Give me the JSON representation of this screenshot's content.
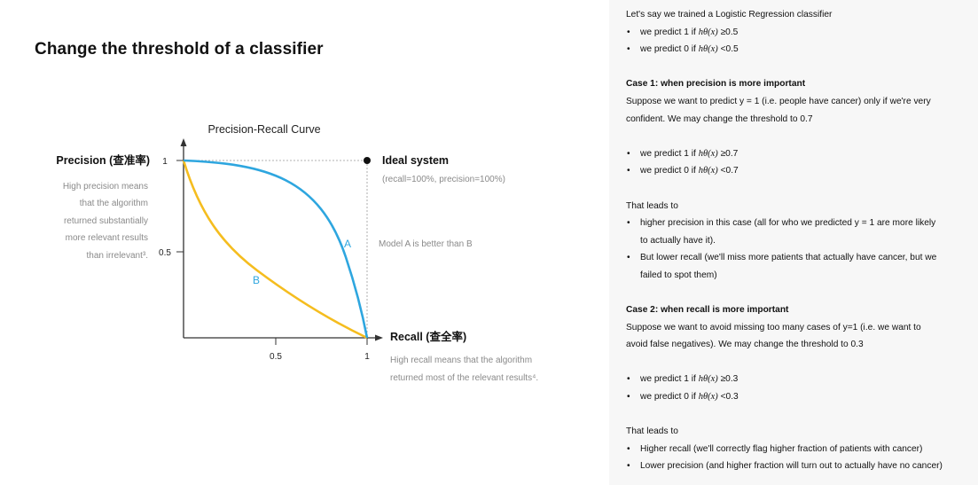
{
  "title": "Change the threshold of a classifier",
  "figure": {
    "chart_title": "Precision-Recall Curve",
    "y_axis_label": "Precision (查准率)",
    "x_axis_label": "Recall (查全率)",
    "y_ticks": [
      "1",
      "0.5"
    ],
    "x_ticks": [
      "0.5",
      "1"
    ],
    "ideal_label": "Ideal system",
    "ideal_sub": "(recall=100%, precision=100%)",
    "curve_a_label": "A",
    "curve_b_label": "B",
    "compare_note": "Model A is better than B",
    "precision_note": [
      "High precision means",
      "that the algorithm",
      "returned substantially",
      "more relevant results",
      "than irrelevant³."
    ],
    "recall_note": [
      "High recall means that the algorithm",
      "returned most of the relevant results⁴."
    ],
    "colors": {
      "curve_a": "#2ea6df",
      "curve_b": "#f5bd1f",
      "note_gray": "#8a8a8a"
    }
  },
  "chart_data": {
    "type": "line",
    "title": "Precision-Recall Curve",
    "xlabel": "Recall (查全率)",
    "ylabel": "Precision (查准率)",
    "xlim": [
      0,
      1
    ],
    "ylim": [
      0,
      1
    ],
    "series": [
      {
        "name": "A",
        "x": [
          0,
          0.2,
          0.4,
          0.6,
          0.75,
          0.85,
          0.92,
          1.0
        ],
        "y": [
          1,
          0.98,
          0.93,
          0.84,
          0.7,
          0.52,
          0.35,
          0
        ]
      },
      {
        "name": "B",
        "x": [
          0,
          0.05,
          0.15,
          0.3,
          0.5,
          0.7,
          0.85,
          1.0
        ],
        "y": [
          1,
          0.82,
          0.63,
          0.45,
          0.28,
          0.14,
          0.06,
          0
        ]
      }
    ],
    "points": [
      {
        "name": "Ideal system",
        "x": 1,
        "y": 1
      }
    ]
  },
  "notes": {
    "intro": "Let's say we trained a Logistic Regression classifier",
    "base_rules": [
      {
        "pre": "we predict 1 if ",
        "math": "hθ(x)",
        "post": " ≥0.5"
      },
      {
        "pre": "we predict 0 if ",
        "math": "hθ(x)",
        "post": " <0.5"
      }
    ],
    "case1_title": "Case 1: when precision is more important",
    "case1_text": [
      "Suppose we want to predict y = 1 (i.e. people have cancer) only if we're very",
      "confident. We may change the threshold to 0.7"
    ],
    "case1_rules": [
      {
        "pre": "we predict 1 if ",
        "math": "hθ(x)",
        "post": " ≥0.7"
      },
      {
        "pre": "we predict 0 if ",
        "math": "hθ(x)",
        "post": " <0.7"
      }
    ],
    "leads_to_1": "That leads to",
    "case1_effects": [
      [
        "higher precision in this case (all for who we predicted y = 1 are more likely",
        "to actually have it)."
      ],
      [
        "But lower recall (we'll miss more patients that actually have cancer, but we",
        "failed to spot them)"
      ]
    ],
    "case2_title": "Case 2: when recall is more important",
    "case2_text": [
      "Suppose we want to avoid missing too many cases of y=1 (i.e. we want to",
      "avoid false negatives). We may change the threshold to 0.3"
    ],
    "case2_rules": [
      {
        "pre": "we predict 1 if ",
        "math": "hθ(x)",
        "post": " ≥0.3"
      },
      {
        "pre": "we predict 0 if ",
        "math": "hθ(x)",
        "post": " <0.3"
      }
    ],
    "leads_to_2": "That leads to",
    "case2_effects": [
      "Higher recall (we'll correctly flag higher fraction of patients with cancer)",
      "Lower precision (and higher fraction will turn out to actually have no cancer)"
    ]
  }
}
